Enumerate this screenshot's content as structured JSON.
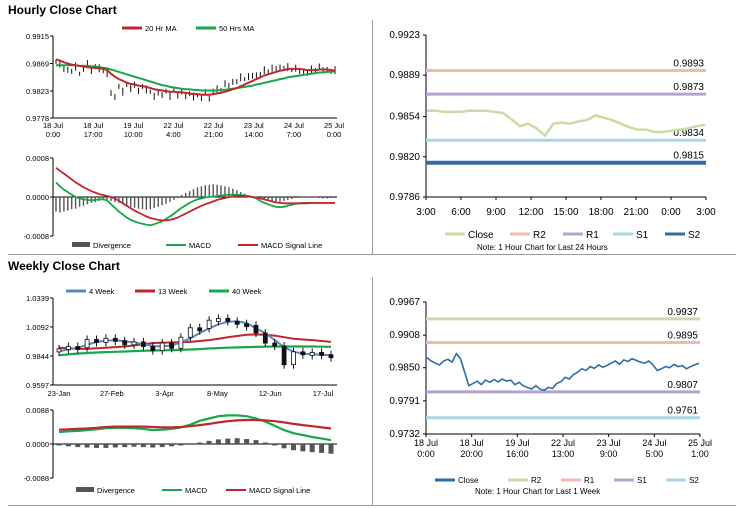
{
  "sections": {
    "hourly_title": "Hourly Close Chart",
    "weekly_title": "Weekly Close Chart"
  },
  "colors": {
    "ma20": "#c0272d",
    "ma50": "#16a84a",
    "red": "#c0272d",
    "green": "#16a84a",
    "blue": "#5b86c4",
    "hist": "#555555",
    "price": "#111111",
    "r2": "#f2b9b2",
    "r1": "#b6a2d0",
    "s1": "#a8d6e4",
    "s2": "#2e6ea6",
    "close24": "#c9dca5",
    "closeW": "#2e6ea6",
    "r2w": "#c9dca5",
    "r1w": "#f2b9b2",
    "s1w": "#b6a2d0",
    "s2w": "#a8d6e4"
  },
  "chart_data": [
    {
      "id": "hourly_price",
      "type": "line",
      "legend": [
        "20 Hr MA",
        "50 Hrs MA"
      ],
      "yticks": [
        "0.9915",
        "0.9869",
        "0.9823",
        "0.9778"
      ],
      "ylim": [
        0.9778,
        0.9915
      ],
      "xticks": [
        [
          "18 Jul",
          "0:00"
        ],
        [
          "18 Jul",
          "17:00"
        ],
        [
          "19 Jul",
          "10:00"
        ],
        [
          "22 Jul",
          "4:00"
        ],
        [
          "22 Jul",
          "21:00"
        ],
        [
          "23 Jul",
          "14:00"
        ],
        [
          "24 Jul",
          "7:00"
        ],
        [
          "25 Jul",
          "0:00"
        ]
      ],
      "price": [
        0.9872,
        0.9869,
        0.9858,
        0.986,
        0.9855,
        0.9864,
        0.9852,
        0.9862,
        0.9868,
        0.9858,
        0.9863,
        0.9861,
        0.9856,
        0.9853,
        0.9818,
        0.9815,
        0.983,
        0.9822,
        0.9833,
        0.9828,
        0.9832,
        0.9825,
        0.983,
        0.9826,
        0.9822,
        0.9815,
        0.9819,
        0.9818,
        0.9822,
        0.9815,
        0.9825,
        0.9817,
        0.9821,
        0.9816,
        0.9818,
        0.9814,
        0.9816,
        0.9813,
        0.982,
        0.9812,
        0.9822,
        0.9826,
        0.9825,
        0.9836,
        0.983,
        0.984,
        0.9838,
        0.9846,
        0.9843,
        0.9848,
        0.9847,
        0.9851,
        0.985,
        0.9858,
        0.9856,
        0.9862,
        0.9858,
        0.9864,
        0.986,
        0.9863,
        0.9858,
        0.9862,
        0.9855,
        0.9857,
        0.9852,
        0.9859,
        0.9858,
        0.9864,
        0.9856,
        0.986,
        0.9855,
        0.9858
      ],
      "ma20": [
        0.9876,
        0.9874,
        0.9871,
        0.9869,
        0.9867,
        0.9866,
        0.9865,
        0.9864,
        0.9863,
        0.9862,
        0.9862,
        0.9861,
        0.986,
        0.9858,
        0.9852,
        0.9847,
        0.9843,
        0.984,
        0.9837,
        0.9835,
        0.9834,
        0.9832,
        0.9831,
        0.983,
        0.9828,
        0.9826,
        0.9825,
        0.9824,
        0.9823,
        0.9822,
        0.9822,
        0.9821,
        0.9821,
        0.982,
        0.9819,
        0.9818,
        0.9818,
        0.9817,
        0.9817,
        0.9817,
        0.9818,
        0.9819,
        0.982,
        0.9822,
        0.9824,
        0.9826,
        0.9828,
        0.9831,
        0.9834,
        0.9837,
        0.984,
        0.9843,
        0.9846,
        0.9849,
        0.9851,
        0.9853,
        0.9855,
        0.9857,
        0.9858,
        0.986,
        0.986,
        0.986,
        0.986,
        0.9859,
        0.9858,
        0.9858,
        0.9858,
        0.9859,
        0.9859,
        0.9859,
        0.9858,
        0.9857
      ],
      "ma50": [
        0.9866,
        0.9866,
        0.9866,
        0.9866,
        0.9866,
        0.9866,
        0.9865,
        0.9865,
        0.9865,
        0.9864,
        0.9864,
        0.9863,
        0.9862,
        0.9861,
        0.9859,
        0.9857,
        0.9855,
        0.9853,
        0.9851,
        0.9849,
        0.9847,
        0.9845,
        0.9843,
        0.9841,
        0.9839,
        0.9837,
        0.9835,
        0.9833,
        0.9832,
        0.983,
        0.9829,
        0.9828,
        0.9827,
        0.9826,
        0.9826,
        0.9825,
        0.9825,
        0.9824,
        0.9824,
        0.9824,
        0.9824,
        0.9824,
        0.9825,
        0.9825,
        0.9826,
        0.9827,
        0.9828,
        0.9829,
        0.983,
        0.9831,
        0.9832,
        0.9834,
        0.9835,
        0.9837,
        0.9838,
        0.984,
        0.9841,
        0.9843,
        0.9844,
        0.9846,
        0.9847,
        0.9848,
        0.9849,
        0.985,
        0.9851,
        0.9852,
        0.9853,
        0.9854,
        0.9854,
        0.9855,
        0.9855,
        0.9856
      ]
    },
    {
      "id": "hourly_macd",
      "type": "bar+line",
      "legend": [
        "Divergence",
        "MACD",
        "MACD Signal Line"
      ],
      "yticks": [
        "0.0008",
        "0.0000",
        "-0.0008"
      ],
      "ylim": [
        -0.0008,
        0.0008
      ],
      "divergence": [
        -0.0003,
        -0.00032,
        -0.0003,
        -0.00028,
        -0.00025,
        -0.00024,
        -0.0002,
        -0.00018,
        -0.00015,
        -0.00012,
        -0.0001,
        -8e-05,
        -6e-05,
        -5e-05,
        -8e-05,
        -0.0001,
        -0.00012,
        -0.00015,
        -0.00018,
        -0.0002,
        -0.00022,
        -0.00024,
        -0.00025,
        -0.00026,
        -0.00025,
        -0.00023,
        -0.0002,
        -0.00017,
        -0.00014,
        -0.0001,
        -6e-05,
        -2e-05,
        4e-05,
        8e-05,
        0.00012,
        0.00016,
        0.0002,
        0.00022,
        0.00024,
        0.00025,
        0.00026,
        0.00025,
        0.00024,
        0.00022,
        0.0002,
        0.00017,
        0.00014,
        0.0001,
        7e-05,
        4e-05,
        2e-05,
        0.0,
        -2e-05,
        -4e-05,
        -6e-05,
        -8e-05,
        -0.0001,
        -0.0001,
        -8e-05,
        -6e-05,
        -4e-05,
        -2e-05,
        0.0,
        1e-05,
        1e-05,
        0.0,
        -1e-05,
        -2e-05,
        -3e-05,
        -3e-05,
        -2e-05,
        -2e-05
      ],
      "macd": [
        0.0003,
        0.00022,
        0.00015,
        0.0001,
        5e-05,
        0.0,
        -3e-05,
        -5e-05,
        -6e-05,
        -7e-05,
        -6e-05,
        -5e-05,
        -5e-05,
        -7e-05,
        -0.00015,
        -0.00022,
        -0.0003,
        -0.00036,
        -0.00042,
        -0.00047,
        -0.0005,
        -0.00053,
        -0.00055,
        -0.00057,
        -0.00058,
        -0.00056,
        -0.00053,
        -0.0005,
        -0.00045,
        -0.0004,
        -0.00034,
        -0.00028,
        -0.00022,
        -0.00017,
        -0.00012,
        -8e-05,
        -5e-05,
        -3e-05,
        -1e-05,
        0.0,
        1e-05,
        2e-05,
        3e-05,
        4e-05,
        5e-05,
        5e-05,
        5e-05,
        4e-05,
        3e-05,
        2e-05,
        0.0,
        -3e-05,
        -8e-05,
        -0.00012,
        -0.00015,
        -0.00018,
        -0.0002,
        -0.00021,
        -0.0002,
        -0.00018,
        -0.00016,
        -0.00014,
        -0.00013,
        -0.00012,
        -0.00012,
        -0.00012,
        -0.00012,
        -0.00012,
        -0.00012,
        -0.00012,
        -0.00012,
        -0.00012
      ],
      "signal": [
        0.0006,
        0.00054,
        0.00048,
        0.00042,
        0.00036,
        0.0003,
        0.00025,
        0.0002,
        0.00016,
        0.00012,
        9e-05,
        6e-05,
        4e-05,
        2e-05,
        0.0,
        -3e-05,
        -8e-05,
        -0.00013,
        -0.00018,
        -0.00023,
        -0.00028,
        -0.00032,
        -0.00036,
        -0.0004,
        -0.00043,
        -0.00045,
        -0.00047,
        -0.00048,
        -0.00048,
        -0.00047,
        -0.00045,
        -0.00042,
        -0.00038,
        -0.00034,
        -0.0003,
        -0.00026,
        -0.00022,
        -0.00018,
        -0.00015,
        -0.00012,
        -9e-05,
        -6e-05,
        -4e-05,
        -2e-05,
        0.0,
        1e-05,
        2e-05,
        2e-05,
        2e-05,
        1e-05,
        0.0,
        -1e-05,
        -3e-05,
        -5e-05,
        -7e-05,
        -9e-05,
        -0.00011,
        -0.00012,
        -0.00013,
        -0.00013,
        -0.00013,
        -0.00013,
        -0.00013,
        -0.00013,
        -0.00013,
        -0.00012,
        -0.00012,
        -0.00012,
        -0.00012,
        -0.00012,
        -0.00012,
        -0.00012
      ]
    },
    {
      "id": "last24",
      "type": "line",
      "yticks": [
        "0.9923",
        "0.9889",
        "0.9854",
        "0.9820",
        "0.9786"
      ],
      "ylim": [
        0.9786,
        0.9923
      ],
      "xticks": [
        "3:00",
        "6:00",
        "9:00",
        "12:00",
        "15:00",
        "18:00",
        "21:00",
        "0:00",
        "3:00"
      ],
      "levels": [
        {
          "name": "R2",
          "value": 0.9893,
          "label": "0.9893"
        },
        {
          "name": "R1",
          "value": 0.9873,
          "label": "0.9873"
        },
        {
          "name": "S1",
          "value": 0.9834,
          "label": "0.9834"
        },
        {
          "name": "S2",
          "value": 0.9815,
          "label": "0.9815"
        }
      ],
      "close": [
        0.9859,
        0.9859,
        0.9858,
        0.9858,
        0.9858,
        0.9859,
        0.9859,
        0.9859,
        0.9858,
        0.9857,
        0.9852,
        0.9846,
        0.9848,
        0.9844,
        0.9838,
        0.9848,
        0.9849,
        0.9848,
        0.985,
        0.9851,
        0.9855,
        0.9853,
        0.9851,
        0.9848,
        0.9845,
        0.9843,
        0.9843,
        0.9841,
        0.9841,
        0.9842,
        0.9843,
        0.9844,
        0.9846,
        0.9847
      ],
      "legend": [
        "Close",
        "R2",
        "R1",
        "S1",
        "S2"
      ],
      "note": "Note: 1 Hour Chart for Last 24 Hours"
    },
    {
      "id": "weekly_price",
      "type": "candlestick+line",
      "legend": [
        "4 Week",
        "13 Week",
        "40 Week"
      ],
      "yticks": [
        "1.0339",
        "1.0092",
        "0.9844",
        "0.9597"
      ],
      "ylim": [
        0.9597,
        1.0339
      ],
      "xticks": [
        "23-Jan",
        "27-Feb",
        "3-Apr",
        "8-May",
        "12-Jun",
        "17-Jul"
      ],
      "close": [
        0.9905,
        0.9925,
        0.9915,
        0.9985,
        0.996,
        0.9995,
        0.9975,
        0.994,
        0.9965,
        0.9925,
        0.989,
        0.9955,
        0.991,
        1.0005,
        1.0085,
        1.008,
        1.015,
        1.0165,
        1.014,
        1.012,
        1.0105,
        1.004,
        0.9955,
        0.993,
        0.977,
        0.988,
        0.9855,
        0.9875,
        0.9855,
        0.9835
      ],
      "wk4": [
        0.9885,
        0.99,
        0.9915,
        0.994,
        0.9965,
        0.9975,
        0.998,
        0.997,
        0.996,
        0.9945,
        0.993,
        0.9925,
        0.9935,
        0.996,
        0.9995,
        1.004,
        1.008,
        1.0115,
        1.0135,
        1.014,
        1.0125,
        1.008,
        1.004,
        0.998,
        0.992,
        0.988,
        0.9865,
        0.986,
        0.9855,
        0.985
      ],
      "wk13": [
        0.9915,
        0.991,
        0.9905,
        0.9905,
        0.991,
        0.9915,
        0.992,
        0.9925,
        0.9935,
        0.9945,
        0.9955,
        0.9958,
        0.996,
        0.9962,
        0.9965,
        0.9972,
        0.998,
        0.9992,
        1.0005,
        1.0015,
        1.0025,
        1.0028,
        1.0025,
        1.0018,
        1.0005,
        0.9992,
        0.9985,
        0.998,
        0.9972,
        0.9965
      ],
      "wk40": [
        0.985,
        0.9858,
        0.9865,
        0.987,
        0.9874,
        0.9878,
        0.988,
        0.9883,
        0.9886,
        0.9889,
        0.9891,
        0.9893,
        0.9895,
        0.9897,
        0.99,
        0.9903,
        0.9908,
        0.9912,
        0.9915,
        0.9918,
        0.992,
        0.9922,
        0.9924,
        0.9925,
        0.9925,
        0.9925,
        0.9925,
        0.9925,
        0.9924,
        0.9923
      ]
    },
    {
      "id": "weekly_macd",
      "type": "bar+line",
      "legend": [
        "Divergence",
        "MACD",
        "MACD Signal Line"
      ],
      "yticks": [
        "0.0088",
        "0.0000",
        "-0.0088"
      ],
      "ylim": [
        -0.0088,
        0.0088
      ],
      "divergence": [
        -0.0004,
        -0.0006,
        -0.0008,
        -0.0009,
        -0.001,
        -0.001,
        -0.0009,
        -0.0008,
        -0.0007,
        -0.0008,
        -0.0009,
        -0.0008,
        -0.0006,
        -0.0004,
        -0.0001,
        0.0004,
        0.0008,
        0.0012,
        0.0014,
        0.0015,
        0.0013,
        0.001,
        0.0004,
        -0.0004,
        -0.0011,
        -0.0016,
        -0.0019,
        -0.0021,
        -0.0023,
        -0.0025
      ],
      "macd": [
        0.0031,
        0.0033,
        0.0034,
        0.0036,
        0.0038,
        0.0041,
        0.0042,
        0.0042,
        0.0041,
        0.0039,
        0.0036,
        0.0037,
        0.0039,
        0.0043,
        0.005,
        0.006,
        0.0066,
        0.0072,
        0.0074,
        0.0074,
        0.0072,
        0.0066,
        0.0058,
        0.0047,
        0.0036,
        0.0028,
        0.0023,
        0.0018,
        0.0014,
        0.001
      ],
      "signal": [
        0.0037,
        0.0038,
        0.0039,
        0.004,
        0.0042,
        0.0044,
        0.0045,
        0.0045,
        0.0045,
        0.0045,
        0.0044,
        0.0043,
        0.0043,
        0.0044,
        0.0046,
        0.0049,
        0.0052,
        0.0056,
        0.0059,
        0.0061,
        0.0062,
        0.0062,
        0.0061,
        0.0059,
        0.0056,
        0.0052,
        0.0049,
        0.0046,
        0.0043,
        0.004
      ]
    },
    {
      "id": "lastweek",
      "type": "line",
      "yticks": [
        "0.9967",
        "0.9908",
        "0.9850",
        "0.9791",
        "0.9732"
      ],
      "ylim": [
        0.9732,
        0.9967
      ],
      "xticks": [
        [
          "18 Jul",
          "0:00"
        ],
        [
          "18 Jul",
          "20:00"
        ],
        [
          "19 Jul",
          "16:00"
        ],
        [
          "22 Jul",
          "13:00"
        ],
        [
          "23 Jul",
          "9:00"
        ],
        [
          "24 Jul",
          "5:00"
        ],
        [
          "25 Jul",
          "1:00"
        ]
      ],
      "levels": [
        {
          "name": "R2",
          "value": 0.9937,
          "label": "0.9937"
        },
        {
          "name": "R1",
          "value": 0.9895,
          "label": "0.9895"
        },
        {
          "name": "S1",
          "value": 0.9807,
          "label": "0.9807"
        },
        {
          "name": "S2",
          "value": 0.9761,
          "label": "0.9761"
        }
      ],
      "close": [
        0.9868,
        0.9862,
        0.9858,
        0.9855,
        0.9862,
        0.9865,
        0.986,
        0.9875,
        0.9866,
        0.9842,
        0.9818,
        0.9822,
        0.9826,
        0.982,
        0.9828,
        0.9824,
        0.9829,
        0.9825,
        0.983,
        0.9826,
        0.9828,
        0.982,
        0.9824,
        0.9818,
        0.9815,
        0.9812,
        0.9818,
        0.9812,
        0.981,
        0.9815,
        0.9813,
        0.9822,
        0.9825,
        0.9833,
        0.983,
        0.9838,
        0.9842,
        0.9848,
        0.9845,
        0.9852,
        0.9849,
        0.9855,
        0.9851,
        0.9854,
        0.9858,
        0.9862,
        0.9856,
        0.9864,
        0.9861,
        0.9866,
        0.9863,
        0.986,
        0.9858,
        0.9862,
        0.9855,
        0.9845,
        0.9848,
        0.9852,
        0.985,
        0.9856,
        0.9852,
        0.9854,
        0.9848,
        0.9852,
        0.9855,
        0.9858
      ],
      "legend": [
        "Close",
        "R2",
        "R1",
        "S1",
        "S2"
      ],
      "note": "Note: 1 Hour Chart for Last 1 Week"
    }
  ]
}
